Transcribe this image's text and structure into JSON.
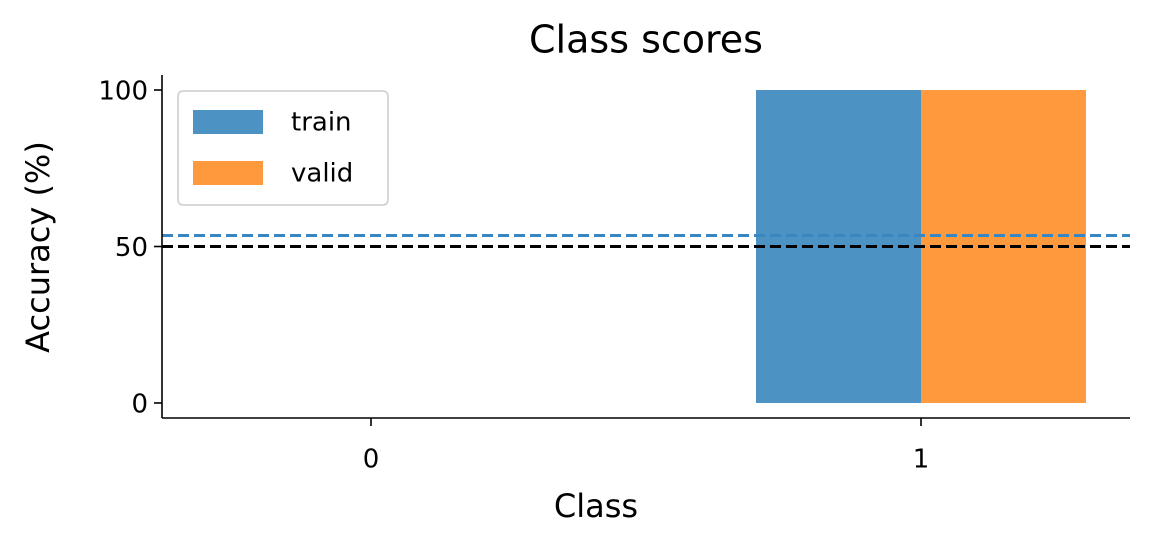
{
  "chart_data": {
    "type": "bar",
    "title": "Class scores",
    "x_label": "Class",
    "y_label": "Accuracy (%)",
    "categories": [
      "0",
      "1"
    ],
    "series": [
      {
        "name": "train",
        "color": "#4c92c3",
        "values": [
          0,
          100
        ]
      },
      {
        "name": "valid",
        "color": "#ff993e",
        "values": [
          0,
          100
        ]
      }
    ],
    "hlines": [
      {
        "value": 53.5,
        "color": "#3a86c0"
      },
      {
        "value": 50,
        "color": "#ff7f0e"
      },
      {
        "value": 50,
        "color": "#000000"
      }
    ],
    "xlim": [
      -0.38,
      1.38
    ],
    "ylim": [
      -4.8,
      104.8
    ],
    "yticks": [
      0,
      50,
      100
    ],
    "legend": "upper left",
    "grid": false
  }
}
